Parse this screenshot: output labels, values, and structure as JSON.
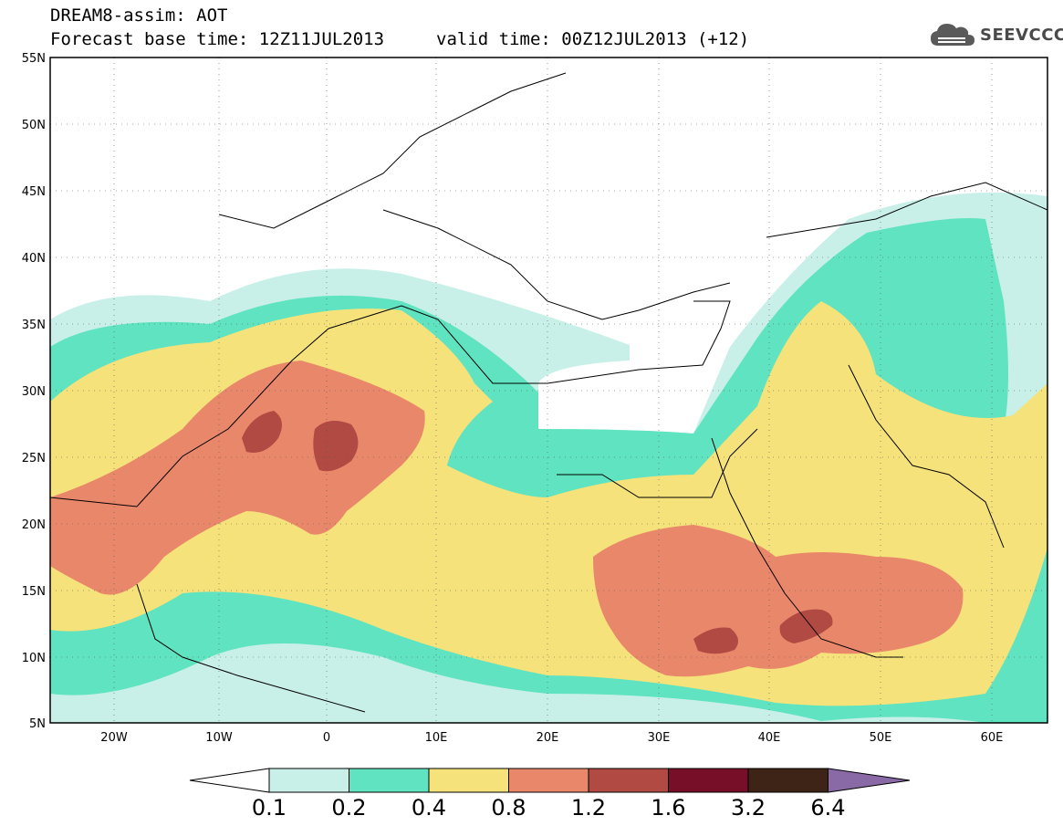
{
  "header": {
    "title": "DREAM8-assim: AOT",
    "base_time": "Forecast base time: 12Z11JUL2013",
    "valid_time": "valid time: 00Z12JUL2013 (+12)"
  },
  "logo": {
    "text": "SEEVCCC",
    "icon": "cloud-icon"
  },
  "axes": {
    "lat_ticks": [
      "55N",
      "50N",
      "45N",
      "40N",
      "35N",
      "30N",
      "25N",
      "20N",
      "15N",
      "10N",
      "5N"
    ],
    "lon_ticks": [
      "20W",
      "10W",
      "0",
      "10E",
      "20E",
      "30E",
      "40E",
      "50E",
      "60E"
    ]
  },
  "colorbar": {
    "labels": [
      "0.1",
      "0.2",
      "0.4",
      "0.8",
      "1.2",
      "1.6",
      "3.2",
      "6.4"
    ],
    "colors": [
      "#ffffff",
      "#c8f0e8",
      "#5fe3c0",
      "#f5e27a",
      "#e9876a",
      "#b04a42",
      "#780f28",
      "#3e2416",
      "#8a6aa6"
    ]
  },
  "colors": {
    "c01": "#c8f0e8",
    "c02": "#5fe3c0",
    "c04": "#f5e27a",
    "c08": "#e9876a",
    "c12": "#b04a42",
    "c16": "#780f28",
    "c32": "#3e2416",
    "c64": "#8a6aa6"
  }
}
